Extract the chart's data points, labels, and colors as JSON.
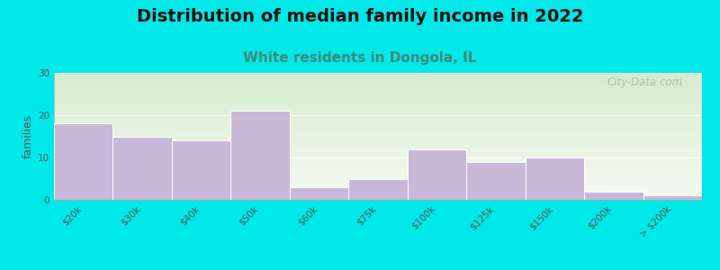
{
  "title": "Distribution of median family income in 2022",
  "subtitle": "White residents in Dongola, IL",
  "categories": [
    "$20k",
    "$30k",
    "$40k",
    "$50k",
    "$60k",
    "$75k",
    "$100k",
    "$125k",
    "$150k",
    "$200k",
    "> $200k"
  ],
  "values": [
    18,
    15,
    14,
    21,
    3,
    5,
    12,
    9,
    10,
    2,
    1
  ],
  "bar_color": "#c9b8d8",
  "bar_edge_color": "#ffffff",
  "background_outer": "#00e8e8",
  "background_plot_top": "#d6ecce",
  "background_plot_bottom": "#f5faf3",
  "title_fontsize": 14,
  "subtitle_fontsize": 11,
  "subtitle_color": "#3d8a7a",
  "ylabel": "families",
  "ylabel_fontsize": 9,
  "tick_fontsize": 7.5,
  "ylim": [
    0,
    30
  ],
  "yticks": [
    0,
    10,
    20,
    30
  ],
  "watermark": "City-Data.com"
}
